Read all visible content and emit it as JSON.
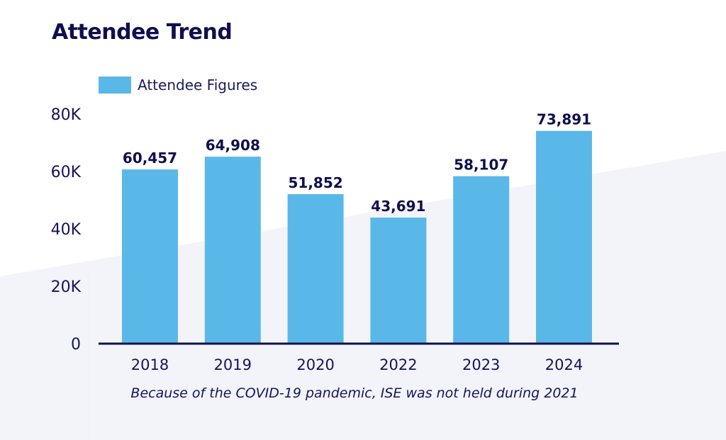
{
  "colors": {
    "bar": "#5ab8e8",
    "text": "#14145a",
    "title": "#0f0f4f",
    "axis": "#0f0f4f",
    "background_band": "#f2f4fa"
  },
  "title": "Attendee Trend",
  "caption": "Because of the COVID-19 pandemic, ISE was not held during 2021",
  "chart_data": {
    "type": "bar",
    "title": "Attendee Trend",
    "xlabel": "",
    "ylabel": "",
    "categories": [
      "2018",
      "2019",
      "2020",
      "2022",
      "2023",
      "2024"
    ],
    "series": [
      {
        "name": "Attendee Figures",
        "values": [
          60457,
          64908,
          51852,
          43691,
          58107,
          73891
        ]
      }
    ],
    "data_labels": [
      "60,457",
      "64,908",
      "51,852",
      "43,691",
      "58,107",
      "73,891"
    ],
    "ylim": [
      0,
      80000
    ],
    "yticks": [
      0,
      20000,
      40000,
      60000,
      80000
    ],
    "ytick_labels": [
      "0",
      "20K",
      "40K",
      "60K",
      "80K"
    ],
    "grid": false,
    "legend": {
      "position": "top-left",
      "entries": [
        "Attendee Figures"
      ]
    },
    "annotation": "Because of the COVID-19 pandemic, ISE was not held during 2021"
  }
}
